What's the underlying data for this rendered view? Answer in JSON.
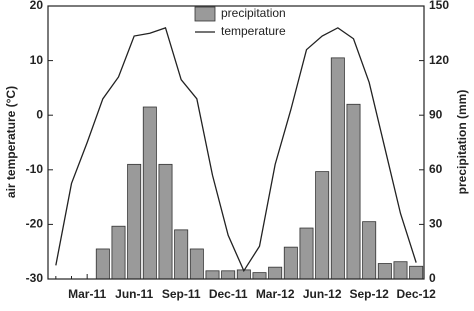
{
  "chart_data": {
    "type": "bar-line",
    "y_label": "air temperature (°C)",
    "y2_label": "precipitation (mm)",
    "categories": [
      null,
      null,
      "Mar-11",
      null,
      null,
      "Jun-11",
      null,
      null,
      "Sep-11",
      null,
      null,
      "Dec-11",
      null,
      null,
      "Mar-12",
      null,
      null,
      "Jun-12",
      null,
      null,
      "Sep-12",
      null,
      null,
      "Dec-12"
    ],
    "series": [
      {
        "name": "precipitation",
        "type": "bar",
        "axis": "y2",
        "color": "#9a9a9a",
        "values": [
          0,
          0,
          0,
          16.5,
          29,
          63,
          94.5,
          63,
          27,
          16.5,
          4.5,
          4.5,
          5,
          3.5,
          6.5,
          17.5,
          28,
          59,
          121.5,
          96,
          31.5,
          8.5,
          9.5,
          7
        ]
      },
      {
        "name": "temperature",
        "type": "line",
        "axis": "y",
        "color": "#222222",
        "values": [
          -27.5,
          -12.5,
          -5,
          3,
          7,
          14.5,
          15,
          16,
          6.5,
          3,
          -11,
          -22,
          -28.5,
          -24,
          -9,
          1,
          12,
          14.5,
          16,
          14,
          6,
          -6,
          -18,
          -27
        ]
      }
    ],
    "ylim": [
      -30,
      20
    ],
    "yticks": [
      -30,
      -20,
      -10,
      0,
      10,
      20
    ],
    "y2lim": [
      0,
      150
    ],
    "y2ticks": [
      0,
      30,
      60,
      90,
      120,
      150
    ],
    "legend": "top"
  }
}
